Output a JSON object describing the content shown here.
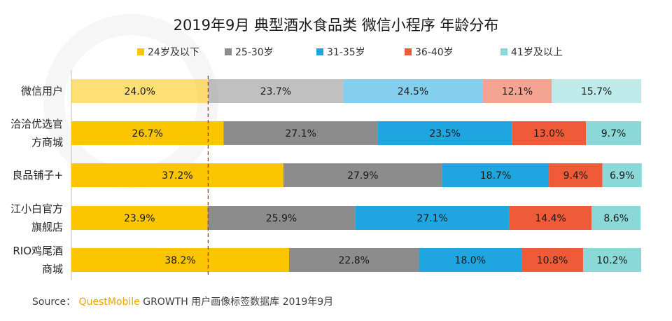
{
  "chart_data": {
    "type": "bar",
    "orientation": "horizontal",
    "stacked": true,
    "percent": true,
    "title": "2019年9月 典型酒水食品类 微信小程序 年龄分布",
    "categories": [
      "微信用户",
      "洽洽优选官方商城",
      "良品铺子+",
      "江小白官方旗舰店",
      "RIO鸡尾酒商城"
    ],
    "category_lines": [
      [
        "微信用户"
      ],
      [
        "洽洽优选官",
        "方商城"
      ],
      [
        "良品铺子+"
      ],
      [
        "江小白官方",
        "旗舰店"
      ],
      [
        "RIO鸡尾酒",
        "商城"
      ]
    ],
    "series": [
      {
        "name": "24岁及以下",
        "color": "#FBC500",
        "values": [
          24.0,
          26.7,
          37.2,
          23.9,
          38.2
        ],
        "labels": [
          "24.0%",
          "26.7%",
          "37.2%",
          "23.9%",
          "38.2%"
        ]
      },
      {
        "name": "25-30岁",
        "color": "#8C8C8C",
        "values": [
          23.7,
          27.1,
          27.9,
          25.9,
          22.8
        ],
        "labels": [
          "23.7%",
          "27.1%",
          "27.9%",
          "25.9%",
          "22.8%"
        ]
      },
      {
        "name": "31-35岁",
        "color": "#1FA6E0",
        "values": [
          24.5,
          23.5,
          18.7,
          27.1,
          18.0
        ],
        "labels": [
          "24.5%",
          "23.5%",
          "18.7%",
          "27.1%",
          "18.0%"
        ]
      },
      {
        "name": "36-40岁",
        "color": "#EF5A39",
        "values": [
          12.1,
          13.0,
          9.4,
          14.4,
          10.8
        ],
        "labels": [
          "12.1%",
          "13.0%",
          "9.4%",
          "14.4%",
          "10.8%"
        ]
      },
      {
        "name": "41岁及以上",
        "color": "#8AD8D8",
        "values": [
          15.7,
          9.7,
          6.9,
          8.6,
          10.2
        ],
        "labels": [
          "15.7%",
          "9.7%",
          "6.9%",
          "8.6%",
          "10.2%"
        ]
      }
    ],
    "highlight_category": "微信用户",
    "reference_line": {
      "value": 24.0,
      "style": "dashed",
      "color": "#E02020"
    },
    "xlim": [
      0,
      100
    ],
    "legend_position": "top"
  },
  "watermark": "QUESTMOBILE",
  "source": {
    "prefix": "Source：",
    "brand": "QuestMobile",
    "text": "GROWTH 用户画像标签数据库 2019年9月"
  }
}
